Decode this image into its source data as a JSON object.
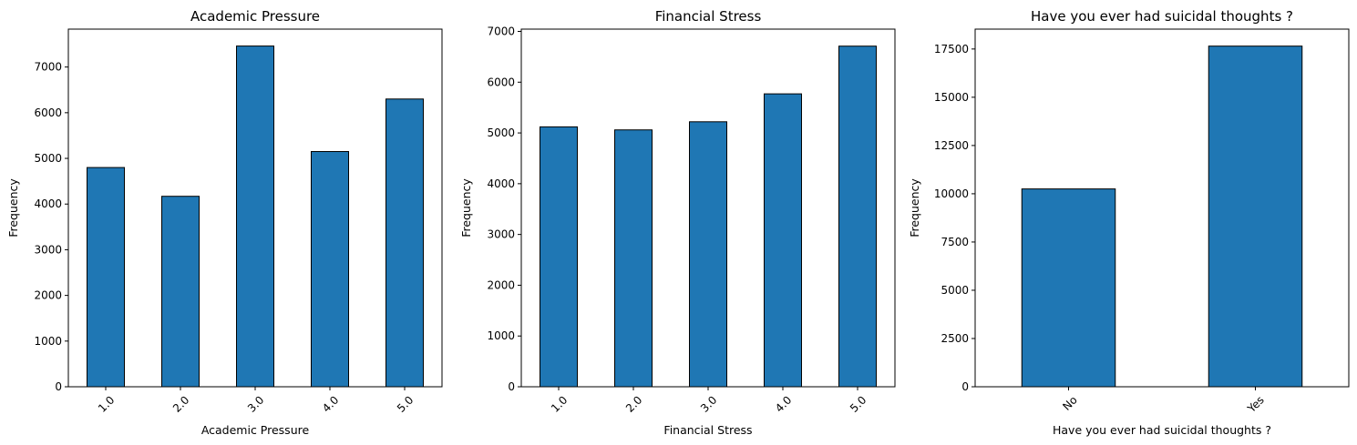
{
  "chart_data": [
    {
      "type": "bar",
      "title": "Academic Pressure",
      "xlabel": "Academic Pressure",
      "ylabel": "Frequency",
      "categories": [
        "1.0",
        "2.0",
        "3.0",
        "4.0",
        "5.0"
      ],
      "values": [
        4800,
        4170,
        7460,
        5150,
        6300
      ],
      "ylim": [
        0,
        7830
      ],
      "yticks": [
        0,
        1000,
        2000,
        3000,
        4000,
        5000,
        6000,
        7000
      ],
      "xtick_rotation": 45,
      "bar_color": "#1f77b4",
      "grid": false,
      "legend": "none"
    },
    {
      "type": "bar",
      "title": "Financial Stress",
      "xlabel": "Financial Stress",
      "ylabel": "Frequency",
      "categories": [
        "1.0",
        "2.0",
        "3.0",
        "4.0",
        "5.0"
      ],
      "values": [
        5120,
        5060,
        5220,
        5770,
        6710
      ],
      "ylim": [
        0,
        7045
      ],
      "yticks": [
        0,
        1000,
        2000,
        3000,
        4000,
        5000,
        6000,
        7000
      ],
      "xtick_rotation": 45,
      "bar_color": "#1f77b4",
      "grid": false,
      "legend": "none"
    },
    {
      "type": "bar",
      "title": "Have you ever had suicidal thoughts ?",
      "xlabel": "Have you ever had suicidal thoughts ?",
      "ylabel": "Frequency",
      "categories": [
        "No",
        "Yes"
      ],
      "values": [
        10250,
        17650
      ],
      "ylim": [
        0,
        18530
      ],
      "yticks": [
        0,
        2500,
        5000,
        7500,
        10000,
        12500,
        15000,
        17500
      ],
      "xtick_rotation": 45,
      "bar_color": "#1f77b4",
      "grid": false,
      "legend": "none"
    }
  ]
}
